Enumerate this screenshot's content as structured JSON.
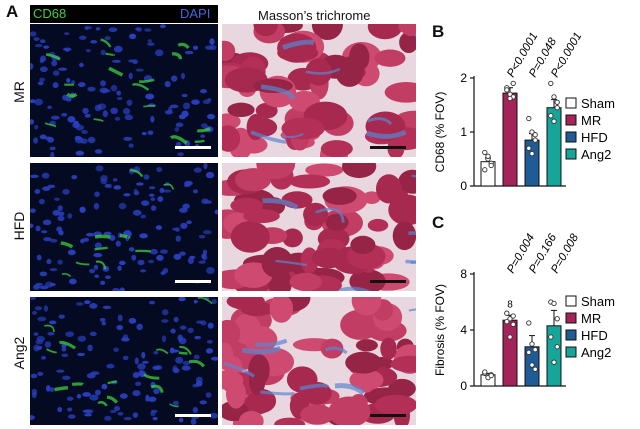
{
  "panel_labels": {
    "a": "A",
    "b": "B",
    "c": "C"
  },
  "panelA": {
    "channel_green": "CD68",
    "channel_blue": "DAPI",
    "masson_header": "Masson’s trichrome",
    "rows": [
      "MR",
      "HFD",
      "Ang2"
    ],
    "colors": {
      "green": "#3ecf3e",
      "blue": "#3f5bd8",
      "nucleus": "#2a3fc0"
    }
  },
  "legend": {
    "items": [
      {
        "label": "Sham",
        "color": "#ffffff"
      },
      {
        "label": "MR",
        "color": "#a4245a"
      },
      {
        "label": "HFD",
        "color": "#1f5c96"
      },
      {
        "label": "Ang2",
        "color": "#17a59a"
      }
    ]
  },
  "chart_data": [
    {
      "type": "bar",
      "panel": "B",
      "categories": [
        "Sham",
        "MR",
        "HFD",
        "Ang2"
      ],
      "values": [
        0.45,
        1.72,
        0.85,
        1.45
      ],
      "errors": [
        0.07,
        0.1,
        0.12,
        0.15
      ],
      "points": [
        [
          0.62,
          0.5,
          0.42,
          0.3,
          0.55,
          0.38
        ],
        [
          1.82,
          1.7,
          1.65,
          1.78,
          1.62,
          1.9
        ],
        [
          1.25,
          1.0,
          0.85,
          0.7,
          0.6,
          0.95
        ],
        [
          1.9,
          1.65,
          1.45,
          1.3,
          1.2,
          1.55
        ]
      ],
      "annotations": [
        "",
        "P<0.0001",
        "P=0.048",
        "P<0.0001"
      ],
      "ylabel": "CD68 (% FOV)",
      "ylim": [
        0,
        2
      ],
      "yticks": [
        "0",
        "1",
        "2"
      ],
      "legend": "right"
    },
    {
      "type": "bar",
      "panel": "C",
      "categories": [
        "Sham",
        "MR",
        "HFD",
        "Ang2"
      ],
      "values": [
        0.8,
        4.7,
        2.8,
        4.3
      ],
      "errors": [
        0.1,
        0.35,
        0.8,
        1.1
      ],
      "points": [
        [
          0.9,
          0.7,
          0.8,
          1.0,
          0.6,
          0.75
        ],
        [
          5.2,
          4.8,
          4.4,
          4.6,
          3.5,
          5.0
        ],
        [
          4.5,
          3.0,
          2.6,
          2.4,
          1.5,
          1.2
        ],
        [
          6.0,
          5.9,
          4.8,
          3.5,
          1.7,
          2.8
        ]
      ],
      "annotations": [
        "",
        "P=0.004",
        "P=0.166",
        "P=0.008"
      ],
      "bar_labels": [
        "",
        "8",
        "",
        ""
      ],
      "ylabel": "Fibrosis (% FOV)",
      "ylim": [
        0,
        8
      ],
      "yticks": [
        "0",
        "4",
        "8"
      ],
      "legend": "right"
    }
  ]
}
